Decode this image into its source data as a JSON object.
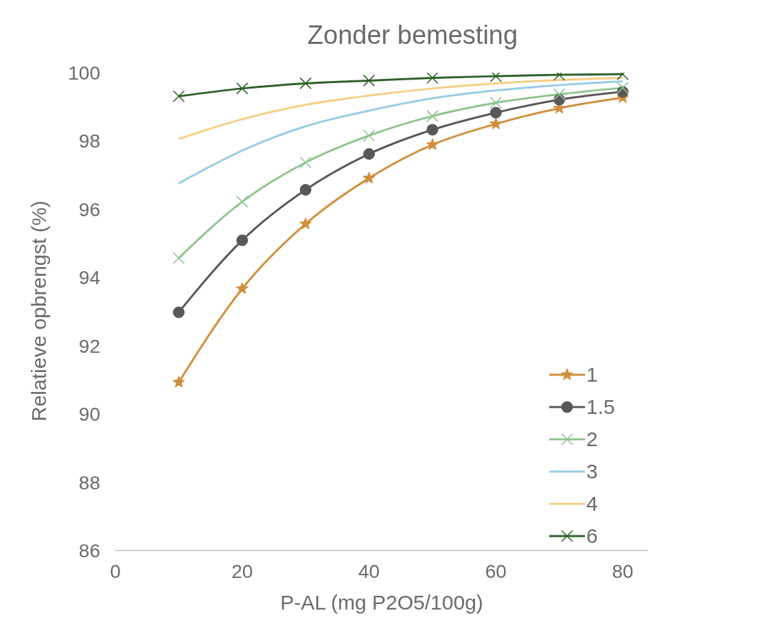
{
  "chart_data": {
    "type": "line",
    "title": "Zonder bemesting",
    "xlabel": "P-AL (mg P2O5/100g)",
    "ylabel": "Relatieve opbrengst (%)",
    "x": [
      10,
      20,
      30,
      40,
      50,
      60,
      70,
      80
    ],
    "series": [
      {
        "name": "1",
        "color": "#d08f3c",
        "marker": "star",
        "values": [
          90.93,
          93.67,
          95.57,
          96.91,
          97.89,
          98.5,
          98.96,
          99.27
        ]
      },
      {
        "name": "1.5",
        "color": "#58585a",
        "marker": "circle",
        "values": [
          92.98,
          95.09,
          96.57,
          97.62,
          98.33,
          98.83,
          99.21,
          99.44
        ]
      },
      {
        "name": "2",
        "color": "#8fc48f",
        "marker": "cross",
        "values": [
          94.57,
          96.22,
          97.37,
          98.16,
          98.73,
          99.12,
          99.37,
          99.56
        ]
      },
      {
        "name": "3",
        "color": "#98cde4",
        "marker": "none",
        "values": [
          96.76,
          97.72,
          98.43,
          98.89,
          99.25,
          99.48,
          99.64,
          99.75
        ]
      },
      {
        "name": "4",
        "color": "#f4cf86",
        "marker": "none",
        "values": [
          98.06,
          98.64,
          99.06,
          99.33,
          99.54,
          99.69,
          99.79,
          99.85
        ]
      },
      {
        "name": "6",
        "color": "#2f5f2a",
        "marker": "cross",
        "values": [
          99.31,
          99.54,
          99.69,
          99.77,
          99.85,
          99.9,
          99.94,
          99.96
        ]
      }
    ],
    "xlim": [
      0,
      84
    ],
    "xticks": [
      0,
      20,
      40,
      60,
      80
    ],
    "ylim": [
      86,
      100
    ],
    "yticks": [
      86,
      88,
      90,
      92,
      94,
      96,
      98,
      100
    ],
    "grid": false,
    "legend": "bottom right",
    "line_style": "solid"
  }
}
